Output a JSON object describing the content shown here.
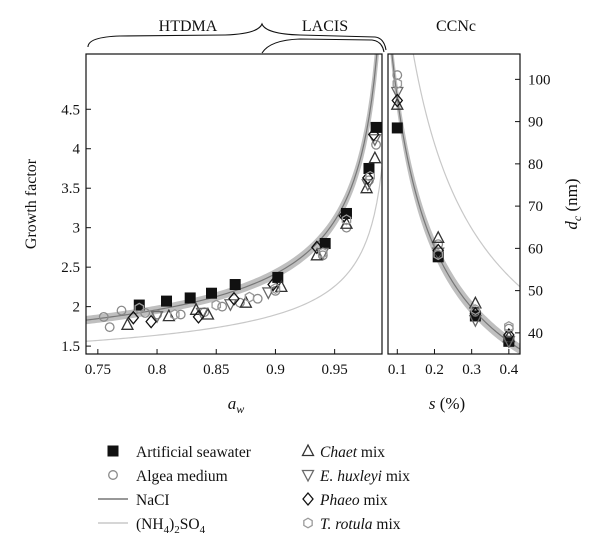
{
  "chart_data": [
    {
      "type": "scatter",
      "panel": "left",
      "xlabel_main": "a",
      "xlabel_sub": "w",
      "ylabel": "Growth factor",
      "xlim": [
        0.74,
        0.99
      ],
      "ylim": [
        1.4,
        5.2
      ],
      "xticks": [
        "0.75",
        "0.8",
        "0.85",
        "0.9",
        "0.95"
      ],
      "xtick_values": [
        0.75,
        0.8,
        0.85,
        0.9,
        0.95
      ],
      "yticks": [
        "1.5",
        "2",
        "2.5",
        "3",
        "3.5",
        "4",
        "4.5"
      ],
      "ytick_values": [
        1.5,
        2,
        2.5,
        3,
        3.5,
        4,
        4.5
      ],
      "instrument_labels": [
        "HTDMA",
        "LACIS"
      ],
      "series": [
        {
          "name": "Artificial seawater",
          "marker": "square-filled",
          "x": [
            0.785,
            0.808,
            0.828,
            0.846,
            0.866,
            0.902,
            0.942,
            0.96,
            0.979,
            0.985
          ],
          "y": [
            2.02,
            2.07,
            2.11,
            2.17,
            2.28,
            2.37,
            2.8,
            3.18,
            3.75,
            4.27
          ]
        },
        {
          "name": "Algea medium",
          "marker": "circle-open",
          "x": [
            0.755,
            0.76,
            0.77,
            0.79,
            0.8,
            0.82,
            0.84,
            0.855,
            0.87,
            0.885,
            0.9,
            0.94,
            0.96,
            0.979,
            0.985
          ],
          "y": [
            1.87,
            1.74,
            1.95,
            1.92,
            1.9,
            1.9,
            1.93,
            2.0,
            2.05,
            2.1,
            2.2,
            2.65,
            3.0,
            3.6,
            4.05
          ]
        },
        {
          "name": "Chaet mix",
          "marker": "triangle-up-open",
          "x": [
            0.775,
            0.81,
            0.833,
            0.843,
            0.875,
            0.905,
            0.935,
            0.96,
            0.977,
            0.984
          ],
          "y": [
            1.77,
            1.88,
            1.96,
            1.9,
            2.05,
            2.25,
            2.65,
            3.05,
            3.5,
            3.88
          ]
        },
        {
          "name": "E. huxleyi mix",
          "marker": "triangle-down-open",
          "x": [
            0.8,
            0.838,
            0.862,
            0.894,
            0.94,
            0.978,
            0.984
          ],
          "y": [
            1.88,
            1.92,
            2.03,
            2.18,
            2.68,
            3.55,
            4.12
          ]
        },
        {
          "name": "Phaeo mix",
          "marker": "diamond-open",
          "x": [
            0.78,
            0.795,
            0.835,
            0.865,
            0.898,
            0.935,
            0.958,
            0.978,
            0.983
          ],
          "y": [
            1.86,
            1.81,
            1.87,
            2.1,
            2.28,
            2.75,
            3.15,
            3.63,
            4.18
          ]
        },
        {
          "name": "T. rotula mix",
          "marker": "hexagon-open",
          "x": [
            0.785,
            0.815,
            0.85,
            0.878,
            0.9,
            0.94,
            0.96,
            0.98
          ],
          "y": [
            1.98,
            1.9,
            2.02,
            2.12,
            2.23,
            2.68,
            3.1,
            3.65
          ]
        }
      ],
      "curves": [
        {
          "name": "NaCI",
          "color": "#777777"
        },
        {
          "name": "(NH4)2SO4",
          "color": "#c8c8c8"
        }
      ]
    },
    {
      "type": "scatter",
      "panel": "right",
      "xlabel_main": "s",
      "xlabel_unit": "(%)",
      "ylabel_main": "d",
      "ylabel_sub": "c",
      "ylabel_unit": "(nm)",
      "instrument_labels": [
        "CCNc"
      ],
      "xlim": [
        0.075,
        0.43
      ],
      "ylim": [
        35,
        106
      ],
      "xticks": [
        "0.1",
        "0.2",
        "0.3",
        "0.4"
      ],
      "xtick_values": [
        0.1,
        0.2,
        0.3,
        0.4
      ],
      "yticks": [
        "40",
        "50",
        "60",
        "70",
        "80",
        "90",
        "100"
      ],
      "ytick_values": [
        40,
        50,
        60,
        70,
        80,
        90,
        100
      ],
      "series": [
        {
          "name": "Artificial seawater",
          "marker": "square-filled",
          "x": [
            0.1,
            0.21,
            0.31,
            0.4
          ],
          "y": [
            88.5,
            58.0,
            44.0,
            38.0
          ]
        },
        {
          "name": "Algea medium",
          "marker": "circle-open",
          "x": [
            0.1,
            0.21,
            0.31,
            0.4
          ],
          "y": [
            101.0,
            61.0,
            45.0,
            41.0
          ]
        },
        {
          "name": "Chaet mix",
          "marker": "triangle-up-open",
          "x": [
            0.1,
            0.21,
            0.31,
            0.4
          ],
          "y": [
            94.0,
            62.5,
            47.0,
            39.0
          ]
        },
        {
          "name": "E. huxleyi mix",
          "marker": "triangle-down-open",
          "x": [
            0.1,
            0.21,
            0.31,
            0.4
          ],
          "y": [
            97.0,
            59.0,
            43.0,
            38.0
          ]
        },
        {
          "name": "Phaeo mix",
          "marker": "diamond-open",
          "x": [
            0.1,
            0.21,
            0.31,
            0.4
          ],
          "y": [
            95.0,
            59.5,
            44.5,
            39.5
          ]
        },
        {
          "name": "T. rotula mix",
          "marker": "hexagon-open",
          "x": [
            0.1,
            0.21,
            0.31,
            0.4
          ],
          "y": [
            99.0,
            58.5,
            45.5,
            41.5
          ]
        }
      ]
    }
  ],
  "legend": {
    "left": [
      {
        "marker": "square-filled",
        "label": "Artificial seawater"
      },
      {
        "marker": "circle-open",
        "label": "Algea medium"
      },
      {
        "marker": "line-dark",
        "label": "NaCI"
      },
      {
        "marker": "line-light",
        "label": "(NH4)2SO4"
      }
    ],
    "right": [
      {
        "marker": "triangle-up-open",
        "italic": "Chaet",
        "rest": " mix"
      },
      {
        "marker": "triangle-down-open",
        "italic": "E. huxleyi",
        "rest": " mix"
      },
      {
        "marker": "diamond-open",
        "italic": "Phaeo",
        "rest": " mix"
      },
      {
        "marker": "hexagon-open",
        "italic": "T. rotula",
        "rest": " mix"
      }
    ]
  },
  "colors": {
    "nacl_band": "#b4b4b4",
    "nacl_line": "#777777",
    "ammsulf_line": "#c8c8c8",
    "seawater": "#111111",
    "algea": "#8a8a8a",
    "chaet": "#333333",
    "huxleyi": "#6a6a6a",
    "phaeo": "#111111",
    "rotula": "#9a9a9a"
  }
}
